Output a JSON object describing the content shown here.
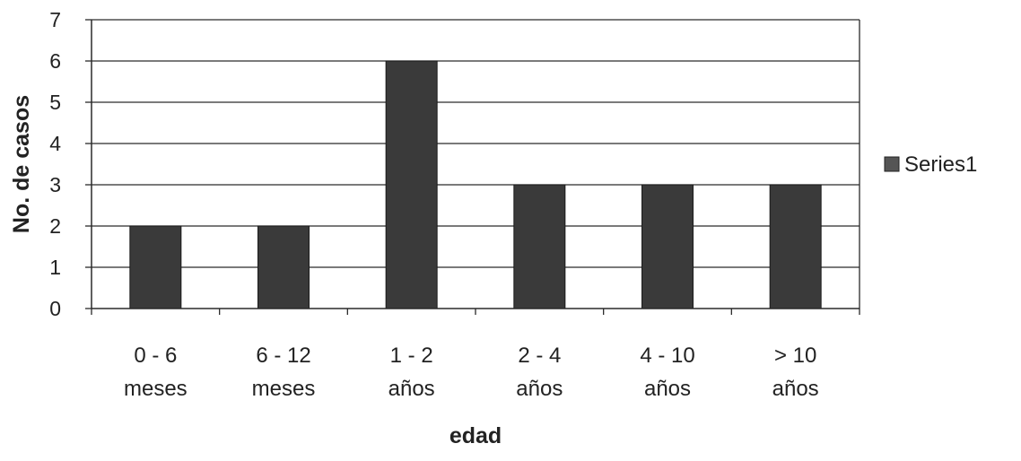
{
  "chart_data": {
    "type": "bar",
    "categories": [
      [
        "0 - 6",
        "meses"
      ],
      [
        "6 - 12",
        "meses"
      ],
      [
        "1 - 2",
        "años"
      ],
      [
        "2 - 4",
        "años"
      ],
      [
        "4 - 10",
        "años"
      ],
      [
        "> 10",
        "años"
      ]
    ],
    "series": [
      {
        "name": "Series1",
        "values": [
          2,
          2,
          6,
          3,
          3,
          3
        ],
        "color": "#3a3a3a"
      }
    ],
    "xlabel": "edad",
    "ylabel": "No. de casos",
    "ylim": [
      0,
      7
    ],
    "yticks": [
      0,
      1,
      2,
      3,
      4,
      5,
      6,
      7
    ],
    "grid": true,
    "legend_position": "right"
  }
}
